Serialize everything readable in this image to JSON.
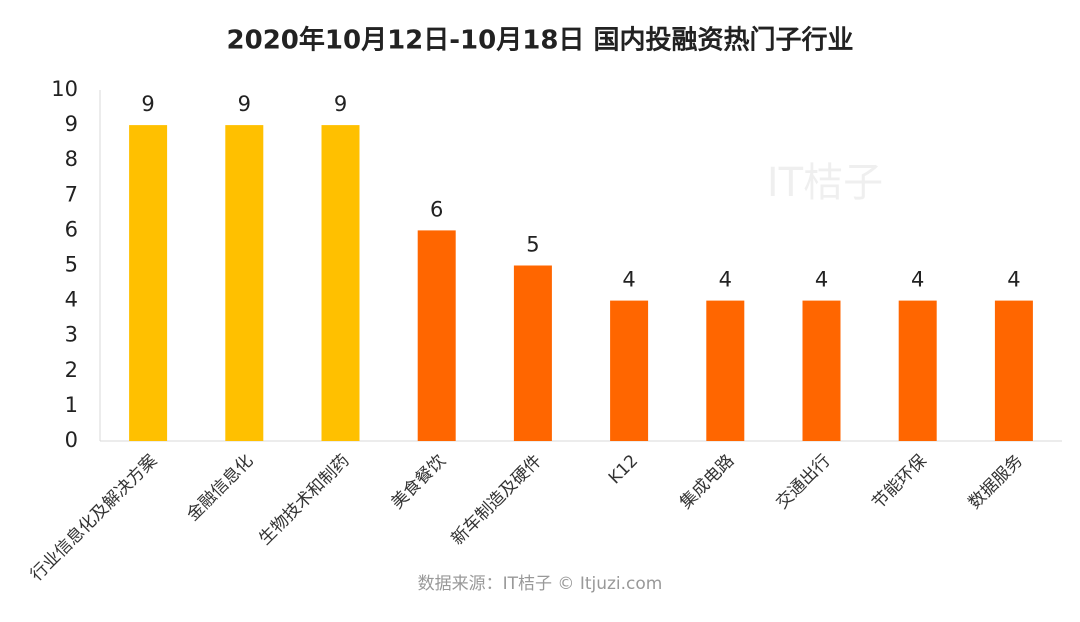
{
  "chart_data": {
    "type": "bar",
    "title": "2020年10月12日-10月18日 国内投融资热门子行业",
    "categories": [
      "行业信息化及解决方案",
      "金融信息化",
      "生物技术和制药",
      "美食餐饮",
      "新车制造及硬件",
      "K12",
      "集成电路",
      "交通出行",
      "节能环保",
      "数据服务"
    ],
    "values": [
      9,
      9,
      9,
      6,
      5,
      4,
      4,
      4,
      4,
      4
    ],
    "colors": [
      "#FFC000",
      "#FFC000",
      "#FFC000",
      "#FF6600",
      "#FF6600",
      "#FF6600",
      "#FF6600",
      "#FF6600",
      "#FF6600",
      "#FF6600"
    ],
    "ylim": [
      0,
      10
    ],
    "yticks": [
      0,
      1,
      2,
      3,
      4,
      5,
      6,
      7,
      8,
      9,
      10
    ],
    "data_labels": true,
    "source": "数据来源：IT桔子 © Itjuzi.com",
    "watermark": "IT桔子"
  }
}
